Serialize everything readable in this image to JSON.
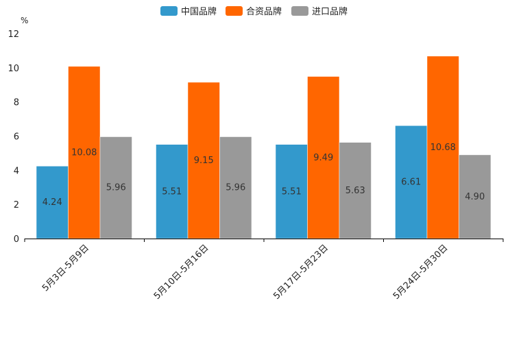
{
  "chart_data": {
    "type": "bar",
    "unit": "%",
    "categories": [
      "5月3日-5月9日",
      "5月10日-5月16日",
      "5月17日-5月23日",
      "5月24日-5月30日"
    ],
    "series": [
      {
        "name": "中国品牌",
        "color": "#3399cc",
        "values": [
          4.24,
          5.51,
          5.51,
          6.61
        ],
        "labels": [
          "4.24",
          "5.51",
          "5.51",
          "6.61"
        ]
      },
      {
        "name": "合资品牌",
        "color": "#ff6600",
        "values": [
          10.08,
          9.15,
          9.49,
          10.68
        ],
        "labels": [
          "10.08",
          "9.15",
          "9.49",
          "10.68"
        ]
      },
      {
        "name": "进口品牌",
        "color": "#999999",
        "values": [
          5.96,
          5.96,
          5.63,
          4.9
        ],
        "labels": [
          "5.96",
          "5.96",
          "5.63",
          "4.90"
        ]
      }
    ],
    "ylim": [
      0,
      12
    ],
    "yticks": [
      "0",
      "2",
      "4",
      "6",
      "8",
      "10",
      "12"
    ],
    "legend_position": "top-center",
    "grid": false
  }
}
